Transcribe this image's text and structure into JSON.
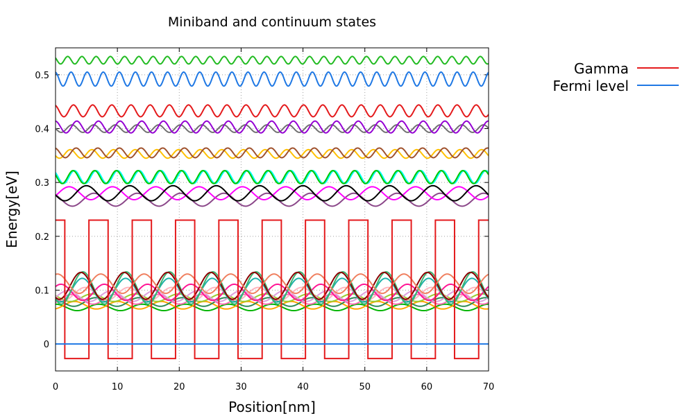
{
  "chart_data": {
    "type": "line",
    "title": "Miniband and continuum states",
    "xlabel": "Position[nm]",
    "ylabel": "Energy[eV]",
    "xlim": [
      0,
      70
    ],
    "ylim": [
      -0.05,
      0.55
    ],
    "xticks": [
      "0",
      "10",
      "20",
      "30",
      "40",
      "50",
      "60",
      "70"
    ],
    "yticks": [
      "0",
      "0.1",
      "0.2",
      "0.3",
      "0.4",
      "0.5"
    ],
    "grid": true,
    "legend": {
      "placement": "outside-top-right",
      "entries": [
        {
          "name": "Gamma",
          "color": "#e41a1c"
        },
        {
          "name": "Fermi level",
          "color": "#1f78e4"
        }
      ]
    },
    "potential": {
      "name": "Gamma",
      "color": "#e41a1c",
      "high": 0.23,
      "low": -0.027,
      "period": 7,
      "segments": [
        {
          "x0": 0.0,
          "x1": 1.5,
          "level": "high"
        },
        {
          "x0": 1.5,
          "x1": 5.4,
          "level": "low"
        },
        {
          "x0": 5.4,
          "x1": 8.5,
          "level": "high"
        },
        {
          "x0": 8.5,
          "x1": 12.4,
          "level": "low"
        },
        {
          "x0": 12.4,
          "x1": 15.5,
          "level": "high"
        },
        {
          "x0": 15.5,
          "x1": 19.4,
          "level": "low"
        },
        {
          "x0": 19.4,
          "x1": 22.5,
          "level": "high"
        },
        {
          "x0": 22.5,
          "x1": 26.4,
          "level": "low"
        },
        {
          "x0": 26.4,
          "x1": 29.5,
          "level": "high"
        },
        {
          "x0": 29.5,
          "x1": 33.4,
          "level": "low"
        },
        {
          "x0": 33.4,
          "x1": 36.5,
          "level": "high"
        },
        {
          "x0": 36.5,
          "x1": 40.4,
          "level": "low"
        },
        {
          "x0": 40.4,
          "x1": 43.5,
          "level": "high"
        },
        {
          "x0": 43.5,
          "x1": 47.4,
          "level": "low"
        },
        {
          "x0": 47.4,
          "x1": 50.5,
          "level": "high"
        },
        {
          "x0": 50.5,
          "x1": 54.4,
          "level": "low"
        },
        {
          "x0": 54.4,
          "x1": 57.5,
          "level": "high"
        },
        {
          "x0": 57.5,
          "x1": 61.4,
          "level": "low"
        },
        {
          "x0": 61.4,
          "x1": 64.5,
          "level": "high"
        },
        {
          "x0": 64.5,
          "x1": 68.4,
          "level": "low"
        },
        {
          "x0": 68.4,
          "x1": 70.0,
          "level": "high"
        }
      ]
    },
    "fermi_level": {
      "name": "Fermi level",
      "color": "#1f78e4",
      "y": 0.0
    },
    "series": [
      {
        "color": "#00b400",
        "base": 0.068,
        "amp": 0.006,
        "period": 7,
        "phase": 0.0
      },
      {
        "color": "#ffa500",
        "base": 0.072,
        "amp": 0.007,
        "period": 7,
        "phase": 3.5
      },
      {
        "color": "#2e8b57",
        "base": 0.078,
        "amp": 0.008,
        "period": 7,
        "phase": 0.5
      },
      {
        "color": "#ff69b4",
        "base": 0.083,
        "amp": 0.009,
        "period": 7,
        "phase": 4.0
      },
      {
        "color": "#9acd32",
        "base": 0.086,
        "amp": 0.007,
        "period": 7,
        "phase": 1.0
      },
      {
        "color": "#dda0dd",
        "base": 0.089,
        "amp": 0.01,
        "period": 7,
        "phase": 4.5
      },
      {
        "color": "#ffb6c1",
        "base": 0.093,
        "amp": 0.012,
        "period": 7,
        "phase": 2.0
      },
      {
        "color": "#ff1493",
        "base": 0.096,
        "amp": 0.015,
        "period": 7,
        "phase": 5.5
      },
      {
        "color": "#20b2aa",
        "base": 0.1,
        "amp": 0.022,
        "period": 7,
        "phase": 2.4
      },
      {
        "color": "#3cb371",
        "base": 0.104,
        "amp": 0.03,
        "period": 7,
        "phase": 2.3
      },
      {
        "color": "#8b0000",
        "base": 0.108,
        "amp": 0.025,
        "period": 7,
        "phase": 2.6
      },
      {
        "color": "#f08060",
        "base": 0.112,
        "amp": 0.018,
        "period": 7,
        "phase": 6.0
      },
      {
        "color": "#8b4789",
        "base": 0.268,
        "amp": 0.012,
        "period": 7,
        "phase": 0.7
      },
      {
        "color": "#ff00ff",
        "base": 0.28,
        "amp": 0.012,
        "period": 7,
        "phase": 4.3
      },
      {
        "color": "#000000",
        "base": 0.28,
        "amp": 0.014,
        "period": 7,
        "phase": 1.8
      },
      {
        "color": "#00ffff",
        "base": 0.31,
        "amp": 0.012,
        "period": 3.5,
        "phase": 0.8
      },
      {
        "color": "#00c800",
        "base": 0.31,
        "amp": 0.012,
        "period": 3.5,
        "phase": 1.2
      },
      {
        "color": "#ffc000",
        "base": 0.353,
        "amp": 0.008,
        "period": 3.5,
        "phase": 2.0
      },
      {
        "color": "#a0522d",
        "base": 0.355,
        "amp": 0.009,
        "period": 3.5,
        "phase": 0.3
      },
      {
        "color": "#707070",
        "base": 0.4,
        "amp": 0.007,
        "period": 3.5,
        "phase": 1.5
      },
      {
        "color": "#9400d3",
        "base": 0.403,
        "amp": 0.011,
        "period": 3.5,
        "phase": 0.1
      },
      {
        "color": "#e41a1c",
        "base": 0.433,
        "amp": 0.011,
        "period": 3.1,
        "phase": 0.4
      },
      {
        "color": "#1f78e4",
        "base": 0.492,
        "amp": 0.013,
        "period": 2.6,
        "phase": 0.2
      },
      {
        "color": "#22bb22",
        "base": 0.527,
        "amp": 0.007,
        "period": 2.3,
        "phase": 0.9
      }
    ]
  }
}
